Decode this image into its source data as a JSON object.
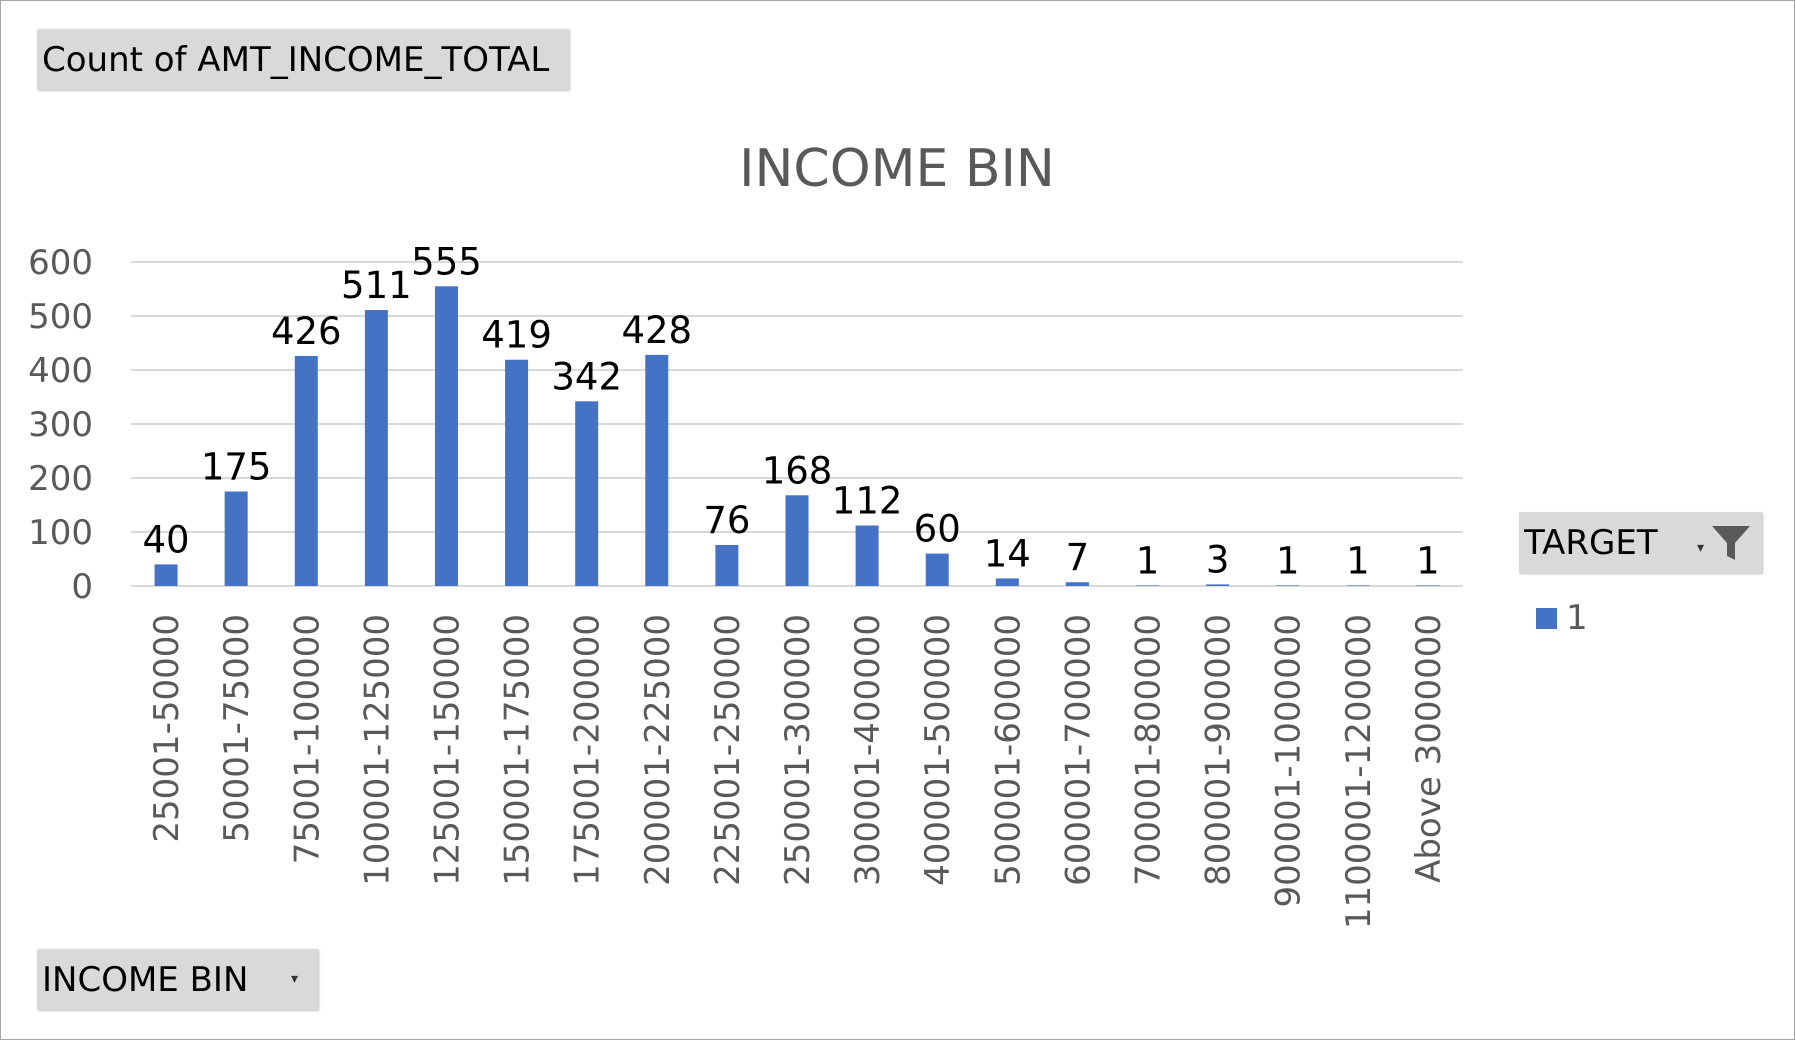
{
  "pivot": {
    "value_field": "Count of AMT_INCOME_TOTAL",
    "axis_field": "INCOME BIN",
    "legend_field": "TARGET",
    "dropdown_glyph": "▾"
  },
  "colors": {
    "bar": "#4472c4",
    "gridline": "#d9d9d9",
    "title": "#595959",
    "tick_label": "#595959",
    "data_label": "#000000"
  },
  "chart_data": {
    "type": "bar",
    "title": "INCOME BIN",
    "xlabel": "",
    "ylabel": "",
    "ylim": [
      0,
      600
    ],
    "yticks": [
      0,
      100,
      200,
      300,
      400,
      500,
      600
    ],
    "grid": true,
    "legend_position": "right",
    "categories": [
      "25001-50000",
      "50001-75000",
      "75001-100000",
      "100001-125000",
      "125001-150000",
      "150001-175000",
      "175001-200000",
      "200001-225000",
      "225001-250000",
      "250001-300000",
      "300001-400000",
      "400001-500000",
      "500001-600000",
      "600001-700000",
      "700001-800000",
      "800001-900000",
      "900001-1000000",
      "1100001-1200000",
      "Above 3000000"
    ],
    "series": [
      {
        "name": "1",
        "values": [
          40,
          175,
          426,
          511,
          555,
          419,
          342,
          428,
          76,
          168,
          112,
          60,
          14,
          7,
          1,
          3,
          1,
          1,
          1
        ]
      }
    ]
  }
}
